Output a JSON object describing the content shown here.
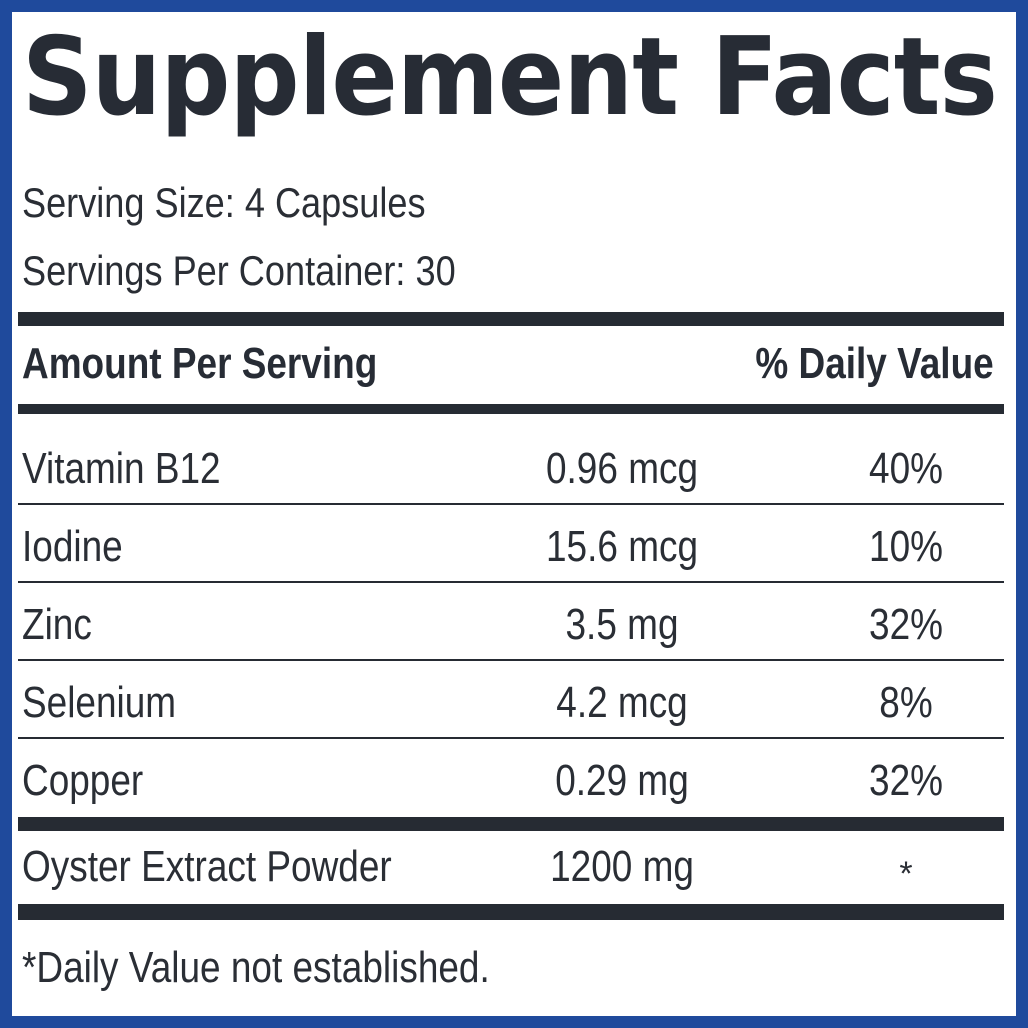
{
  "label": {
    "title": "Supplement Facts",
    "serving_size": "Serving Size: 4 Capsules",
    "servings_per_container": "Servings Per Container: 30",
    "header_amount": "Amount Per Serving",
    "header_dv": "% Daily Value",
    "nutrients": [
      {
        "name": "Vitamin B12",
        "amount": "0.96 mcg",
        "dv": "40%"
      },
      {
        "name": "Iodine",
        "amount": "15.6 mcg",
        "dv": "10%"
      },
      {
        "name": "Zinc",
        "amount": "3.5 mg",
        "dv": "32%"
      },
      {
        "name": "Selenium",
        "amount": "4.2 mcg",
        "dv": "8%"
      },
      {
        "name": "Copper",
        "amount": "0.29 mg",
        "dv": "32%"
      }
    ],
    "other_ingredient": {
      "name": "Oyster Extract Powder",
      "amount": "1200 mg",
      "dv": "*"
    },
    "footnote": "*Daily Value not established."
  },
  "colors": {
    "border": "#1f4a9c",
    "text": "#262b33",
    "background": "#ffffff"
  }
}
